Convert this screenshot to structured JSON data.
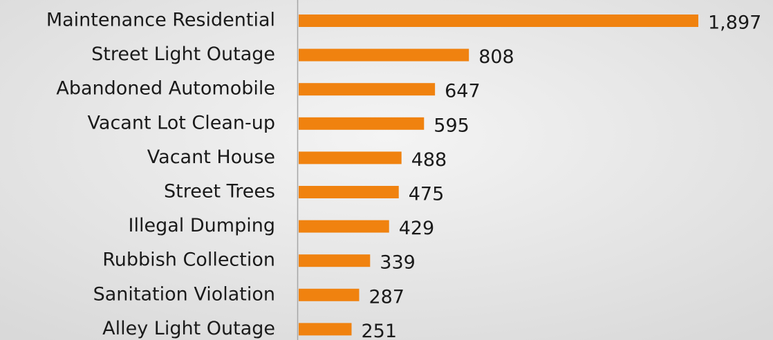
{
  "chart_data": {
    "type": "barh",
    "categories": [
      "Maintenance Residential",
      "Street Light Outage",
      "Abandoned Automobile",
      "Vacant Lot Clean-up",
      "Vacant House",
      "Street Trees",
      "Illegal Dumping",
      "Rubbish Collection",
      "Sanitation Violation",
      "Alley Light Outage"
    ],
    "values": [
      1897,
      808,
      647,
      595,
      488,
      475,
      429,
      339,
      287,
      251
    ],
    "value_labels": [
      "1,897",
      "808",
      "647",
      "595",
      "488",
      "475",
      "429",
      "339",
      "287",
      "251"
    ],
    "color": "#f0820f"
  }
}
